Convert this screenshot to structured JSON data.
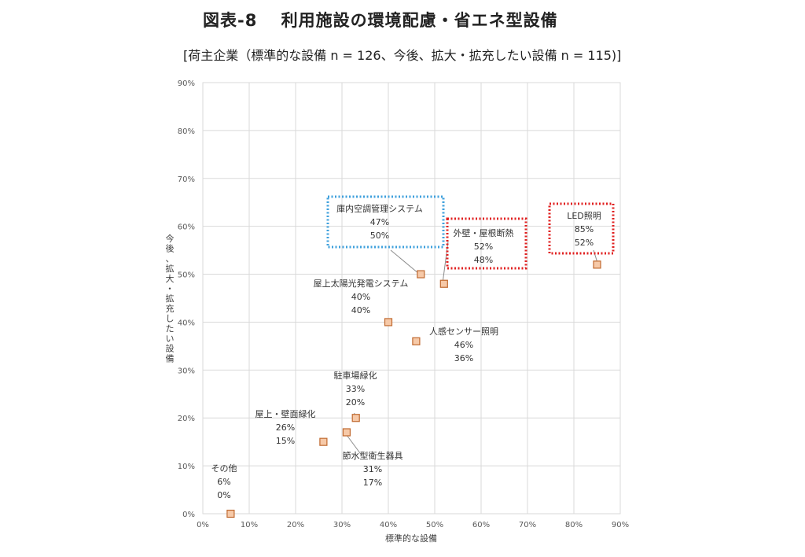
{
  "header": {
    "title": "図表-8　 利用施設の環境配慮・省エネ型設備",
    "subtitle": "[荷主企業（標準的な設備 n = 126、今後、拡大・拡充したい設備 n = 115)]"
  },
  "chart_data": {
    "type": "scatter",
    "xlabel": "標準的な設備",
    "ylabel": "今後、拡大・拡充したい設備",
    "xlim": [
      0,
      90
    ],
    "ylim": [
      0,
      90
    ],
    "x_ticks": [
      "0%",
      "10%",
      "20%",
      "30%",
      "40%",
      "50%",
      "60%",
      "70%",
      "80%",
      "90%"
    ],
    "y_ticks": [
      "0%",
      "10%",
      "20%",
      "30%",
      "40%",
      "50%",
      "60%",
      "70%",
      "80%",
      "90%"
    ],
    "grid": true,
    "marker_color": "#f6c9a8",
    "marker_edge_color": "#c0692f",
    "highlight_colors": {
      "blue": "#3fa0dc",
      "red": "#e02020"
    },
    "points": [
      {
        "name": "その他",
        "x": 6,
        "y": 0,
        "x_label": "6%",
        "y_label": "0%"
      },
      {
        "name": "屋上・壁面緑化",
        "x": 26,
        "y": 15,
        "x_label": "26%",
        "y_label": "15%"
      },
      {
        "name": "節水型衛生器具",
        "x": 31,
        "y": 17,
        "x_label": "31%",
        "y_label": "17%"
      },
      {
        "name": "駐車場緑化",
        "x": 33,
        "y": 20,
        "x_label": "33%",
        "y_label": "20%"
      },
      {
        "name": "屋上太陽光発電システム",
        "x": 40,
        "y": 40,
        "x_label": "40%",
        "y_label": "40%"
      },
      {
        "name": "人感センサー照明",
        "x": 46,
        "y": 36,
        "x_label": "46%",
        "y_label": "36%"
      },
      {
        "name": "庫内空調管理システム",
        "x": 47,
        "y": 50,
        "x_label": "47%",
        "y_label": "50%",
        "highlight": "blue"
      },
      {
        "name": "外壁・屋根断熱",
        "x": 52,
        "y": 48,
        "x_label": "52%",
        "y_label": "48%",
        "highlight": "red"
      },
      {
        "name": "LED照明",
        "x": 85,
        "y": 52,
        "x_label": "85%",
        "y_label": "52%",
        "highlight": "red"
      }
    ]
  }
}
